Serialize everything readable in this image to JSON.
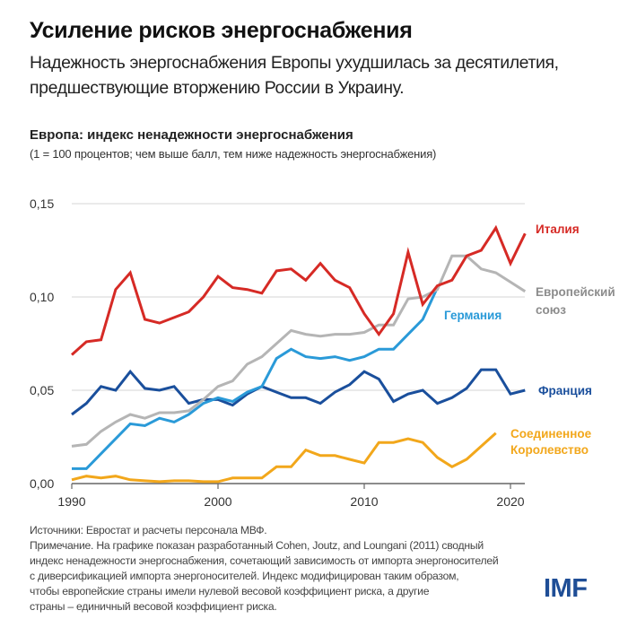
{
  "header": {
    "title": "Усиление рисков энергоснабжения",
    "subtitle": "Надежность энергоснабжения Европы ухудшилась за десятилетия, предшествующие вторжению России в Украину."
  },
  "chart_data": {
    "type": "line",
    "title": "Европа: индекс ненадежности энергоснабжения",
    "subtitle": "(1 = 100 процентов; чем выше балл, тем ниже надежность энергоснабжения)",
    "xlabel": "",
    "ylabel": "",
    "xlim": [
      1990,
      2021
    ],
    "ylim": [
      0,
      0.15
    ],
    "x_ticks": [
      1990,
      2000,
      2010,
      2020
    ],
    "x_tick_labels": [
      "1990",
      "2000",
      "2010",
      "2020"
    ],
    "y_ticks": [
      0,
      0.05,
      0.1,
      0.15
    ],
    "y_tick_labels": [
      "0,00",
      "0,05",
      "0,10",
      "0,15"
    ],
    "grid": true,
    "legend": "direct labels at line ends (right)",
    "series": [
      {
        "name": "Италия",
        "color": "#d62a25",
        "x": [
          1990,
          1991,
          1992,
          1993,
          1994,
          1995,
          1996,
          1997,
          1998,
          1999,
          2000,
          2001,
          2002,
          2003,
          2004,
          2005,
          2006,
          2007,
          2008,
          2009,
          2010,
          2011,
          2012,
          2013,
          2014,
          2015,
          2016,
          2017,
          2018,
          2019,
          2020,
          2021
        ],
        "values": [
          0.069,
          0.076,
          0.077,
          0.104,
          0.113,
          0.088,
          0.086,
          0.089,
          0.092,
          0.1,
          0.111,
          0.105,
          0.104,
          0.102,
          0.114,
          0.115,
          0.109,
          0.118,
          0.109,
          0.105,
          0.091,
          0.08,
          0.091,
          0.124,
          0.096,
          0.106,
          0.109,
          0.122,
          0.125,
          0.137,
          0.118,
          0.134
        ]
      },
      {
        "name": "Европейский союз",
        "color": "#b5b5b5",
        "x": [
          1990,
          1991,
          1992,
          1993,
          1994,
          1995,
          1996,
          1997,
          1998,
          1999,
          2000,
          2001,
          2002,
          2003,
          2004,
          2005,
          2006,
          2007,
          2008,
          2009,
          2010,
          2011,
          2012,
          2013,
          2014,
          2015,
          2016,
          2017,
          2018,
          2019,
          2020,
          2021
        ],
        "values": [
          0.02,
          0.021,
          0.028,
          0.033,
          0.037,
          0.035,
          0.038,
          0.038,
          0.039,
          0.045,
          0.052,
          0.055,
          0.064,
          0.068,
          0.075,
          0.082,
          0.08,
          0.079,
          0.08,
          0.08,
          0.081,
          0.085,
          0.085,
          0.099,
          0.1,
          0.104,
          0.122,
          0.122,
          0.115,
          0.113,
          0.108,
          0.103
        ]
      },
      {
        "name": "Германия",
        "color": "#2a9ad8",
        "x": [
          1990,
          1991,
          1992,
          1993,
          1994,
          1995,
          1996,
          1997,
          1998,
          1999,
          2000,
          2001,
          2002,
          2003,
          2004,
          2005,
          2006,
          2007,
          2008,
          2009,
          2010,
          2011,
          2012,
          2013,
          2014,
          2015
        ],
        "values": [
          0.008,
          0.008,
          0.016,
          0.024,
          0.032,
          0.031,
          0.035,
          0.033,
          0.037,
          0.043,
          0.046,
          0.044,
          0.049,
          0.052,
          0.067,
          0.072,
          0.068,
          0.067,
          0.068,
          0.066,
          0.068,
          0.072,
          0.072,
          0.08,
          0.088,
          0.105
        ]
      },
      {
        "name": "Франция",
        "color": "#1a4f9c",
        "x": [
          1990,
          1991,
          1992,
          1993,
          1994,
          1995,
          1996,
          1997,
          1998,
          1999,
          2000,
          2001,
          2002,
          2003,
          2004,
          2005,
          2006,
          2007,
          2008,
          2009,
          2010,
          2011,
          2012,
          2013,
          2014,
          2015,
          2016,
          2017,
          2018,
          2019,
          2020,
          2021
        ],
        "values": [
          0.037,
          0.043,
          0.052,
          0.05,
          0.06,
          0.051,
          0.05,
          0.052,
          0.043,
          0.045,
          0.045,
          0.042,
          0.048,
          0.052,
          0.049,
          0.046,
          0.046,
          0.043,
          0.049,
          0.053,
          0.06,
          0.056,
          0.044,
          0.048,
          0.05,
          0.043,
          0.046,
          0.051,
          0.061,
          0.061,
          0.048,
          0.05
        ]
      },
      {
        "name": "Соединенное Королевство",
        "color": "#f2a71b",
        "x": [
          1990,
          1991,
          1992,
          1993,
          1994,
          1995,
          1996,
          1997,
          1998,
          1999,
          2000,
          2001,
          2002,
          2003,
          2004,
          2005,
          2006,
          2007,
          2008,
          2009,
          2010,
          2011,
          2012,
          2013,
          2014,
          2015,
          2016,
          2017,
          2018,
          2019
        ],
        "values": [
          0.002,
          0.004,
          0.003,
          0.004,
          0.002,
          0.0015,
          0.001,
          0.0015,
          0.0015,
          0.001,
          0.001,
          0.003,
          0.003,
          0.003,
          0.009,
          0.009,
          0.018,
          0.015,
          0.015,
          0.013,
          0.011,
          0.022,
          0.022,
          0.024,
          0.022,
          0.014,
          0.009,
          0.013,
          0.02,
          0.027
        ]
      }
    ],
    "labels": {
      "italy": "Италия",
      "eu_line1": "Европейский",
      "eu_line2": "союз",
      "germany": "Германия",
      "france": "Франция",
      "uk_line1": "Соединенное",
      "uk_line2": "Королевство"
    }
  },
  "footnote": {
    "sources": "Источники: Евростат и расчеты персонала МВФ.",
    "note_lines": [
      "Примечание. На графике показан разработанный Cohen, Joutz, and Loungani (2011) сводный",
      "индекс ненадежности энергоснабжения, сочетающий зависимость от импорта энергоносителей",
      "с диверсификацией импорта энергоносителей. Индекс модифицирован таким образом,",
      "чтобы европейские страны имели нулевой весовой коэффициент риска, а другие",
      "страны – единичный весовой коэффициент риска."
    ]
  },
  "logo": {
    "text": "IMF",
    "color": "#1f4e96"
  }
}
